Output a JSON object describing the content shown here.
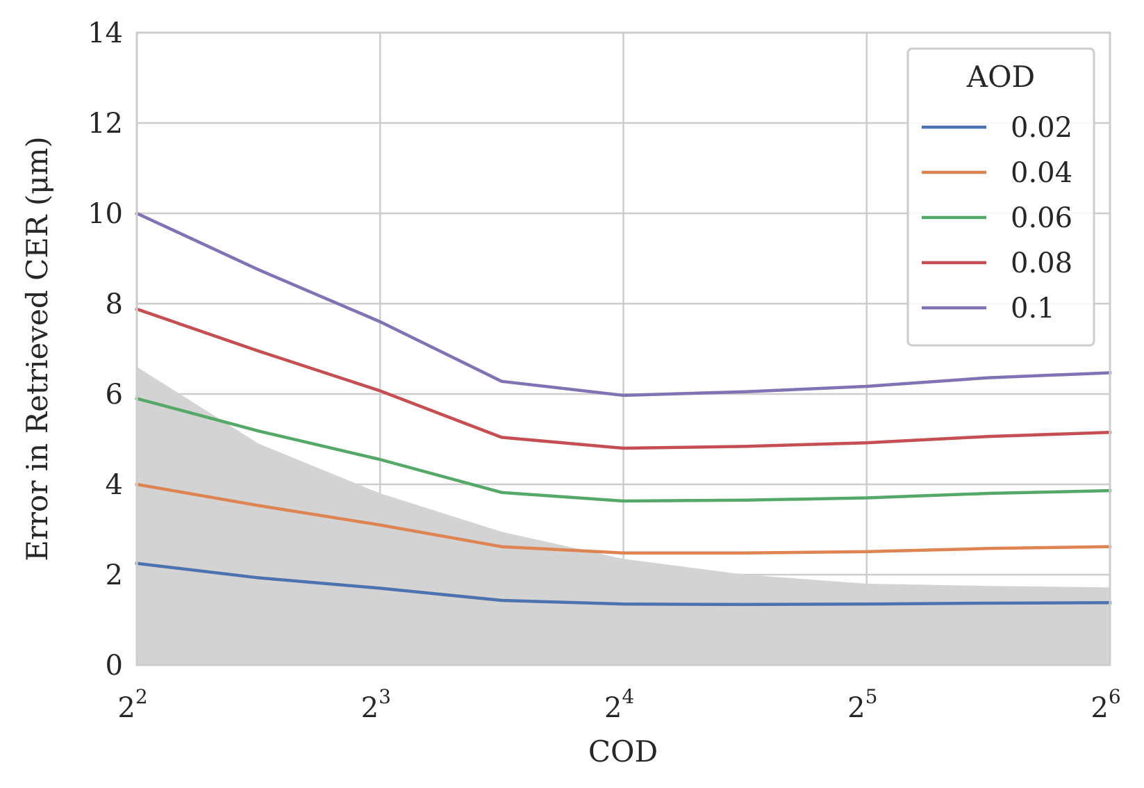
{
  "chart_data": {
    "type": "line",
    "xlabel": "COD",
    "ylabel": "Error in Retrieved CER (μm)",
    "x_scale": "log2",
    "xlim": [
      4,
      64
    ],
    "ylim": [
      0,
      14
    ],
    "x_ticks": [
      {
        "value": 4,
        "base": "2",
        "exp": "2"
      },
      {
        "value": 8,
        "base": "2",
        "exp": "3"
      },
      {
        "value": 16,
        "base": "2",
        "exp": "4"
      },
      {
        "value": 32,
        "base": "2",
        "exp": "5"
      },
      {
        "value": 64,
        "base": "2",
        "exp": "6"
      }
    ],
    "y_ticks": [
      {
        "value": 0,
        "label": "0"
      },
      {
        "value": 2,
        "label": "2"
      },
      {
        "value": 4,
        "label": "4"
      },
      {
        "value": 6,
        "label": "6"
      },
      {
        "value": 8,
        "label": "8"
      },
      {
        "value": 10,
        "label": "10"
      },
      {
        "value": 12,
        "label": "12"
      },
      {
        "value": 14,
        "label": "14"
      }
    ],
    "grid": true,
    "legend": {
      "title": "AOD",
      "placement": "top-right"
    },
    "shaded_region": {
      "color": "#d3d3d3",
      "x": [
        4,
        5.66,
        8,
        11.31,
        16,
        22.63,
        32,
        45.25,
        64
      ],
      "upper": [
        6.6,
        4.9,
        3.8,
        2.95,
        2.35,
        2.0,
        1.8,
        1.75,
        1.72
      ]
    },
    "series": [
      {
        "name": "0.02",
        "color": "#4c72b0",
        "x": [
          4,
          5.66,
          8,
          11.31,
          16,
          22.63,
          32,
          45.25,
          64
        ],
        "values": [
          2.25,
          1.93,
          1.7,
          1.43,
          1.35,
          1.34,
          1.35,
          1.37,
          1.38
        ]
      },
      {
        "name": "0.04",
        "color": "#dd8452",
        "x": [
          4,
          5.66,
          8,
          11.31,
          16,
          22.63,
          32,
          45.25,
          64
        ],
        "values": [
          4.0,
          3.53,
          3.1,
          2.62,
          2.48,
          2.48,
          2.51,
          2.58,
          2.62
        ]
      },
      {
        "name": "0.06",
        "color": "#55a868",
        "x": [
          4,
          5.66,
          8,
          11.31,
          16,
          22.63,
          32,
          45.25,
          64
        ],
        "values": [
          5.9,
          5.18,
          4.55,
          3.82,
          3.63,
          3.65,
          3.7,
          3.8,
          3.86
        ]
      },
      {
        "name": "0.08",
        "color": "#c44e52",
        "x": [
          4,
          5.66,
          8,
          11.31,
          16,
          22.63,
          32,
          45.25,
          64
        ],
        "values": [
          7.88,
          6.95,
          6.07,
          5.04,
          4.8,
          4.84,
          4.92,
          5.06,
          5.15
        ]
      },
      {
        "name": "0.1",
        "color": "#8172b3",
        "x": [
          4,
          5.66,
          8,
          11.31,
          16,
          22.63,
          32,
          45.25,
          64
        ],
        "values": [
          10.0,
          8.75,
          7.6,
          6.28,
          5.97,
          6.05,
          6.17,
          6.36,
          6.47
        ]
      }
    ]
  }
}
